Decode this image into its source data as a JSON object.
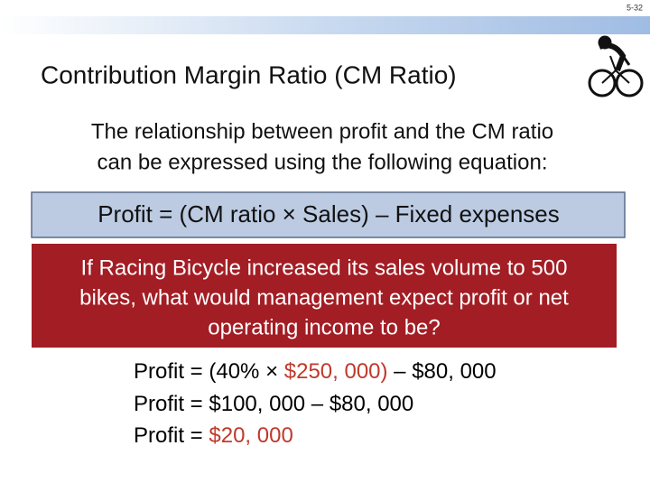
{
  "header": {
    "page_number": "5-32",
    "title": "Contribution Margin Ratio (CM Ratio)"
  },
  "intro": [
    "The relationship between profit and the CM ratio",
    "can be expressed using the following equation:"
  ],
  "equation": "Profit = (CM ratio × Sales) – Fixed expenses",
  "question": [
    "If Racing Bicycle increased its sales volume to 500",
    "bikes, what would management expect profit or net",
    "operating income to be?"
  ],
  "solution": [
    [
      {
        "text": "Profit = (40% × ",
        "color": "#000000"
      },
      {
        "text": "$250, 000)",
        "color": "#c0392b"
      },
      {
        "text": " – $80, 000",
        "color": "#000000"
      }
    ],
    [
      {
        "text": "Profit = $100, 000 – $80, 000",
        "color": "#000000"
      }
    ],
    [
      {
        "text": "Profit = ",
        "color": "#000000"
      },
      {
        "text": "$20, 000",
        "color": "#c0392b"
      }
    ]
  ]
}
